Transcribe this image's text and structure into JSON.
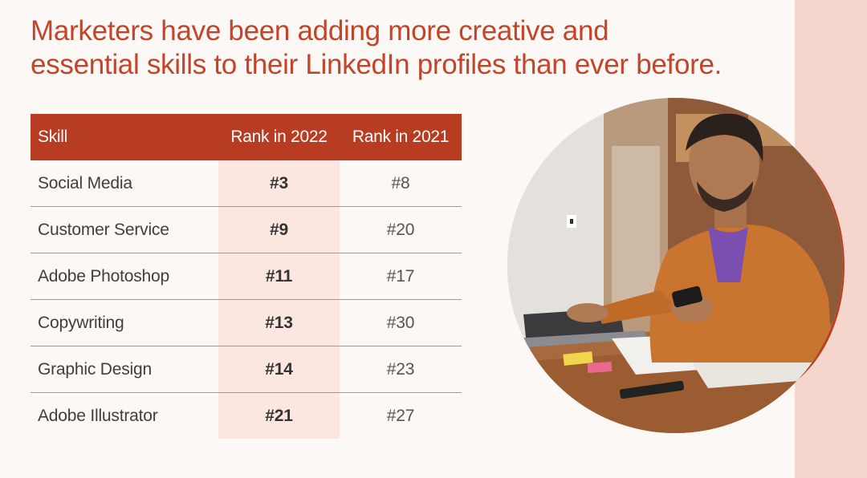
{
  "headline": {
    "line1": "Marketers have been adding more creative and",
    "line2": "essential skills to their LinkedIn profiles than ever before."
  },
  "table": {
    "headers": {
      "skill": "Skill",
      "rank2022": "Rank in 2022",
      "rank2021": "Rank in 2021"
    },
    "rows": [
      {
        "skill": "Social Media",
        "rank2022": "#3",
        "rank2021": "#8"
      },
      {
        "skill": "Customer Service",
        "rank2022": "#9",
        "rank2021": "#20"
      },
      {
        "skill": "Adobe Photoshop",
        "rank2022": "#11",
        "rank2021": "#17"
      },
      {
        "skill": "Copywriting",
        "rank2022": "#13",
        "rank2021": "#30"
      },
      {
        "skill": "Graphic Design",
        "rank2022": "#14",
        "rank2021": "#23"
      },
      {
        "skill": "Adobe Illustrator",
        "rank2022": "#21",
        "rank2021": "#27"
      }
    ]
  },
  "colors": {
    "accent": "#b73c22",
    "headline": "#c2452a",
    "highlight_column": "#fbe6e0",
    "side_strip": "#f4d6cd",
    "background": "#fcf8f5"
  }
}
